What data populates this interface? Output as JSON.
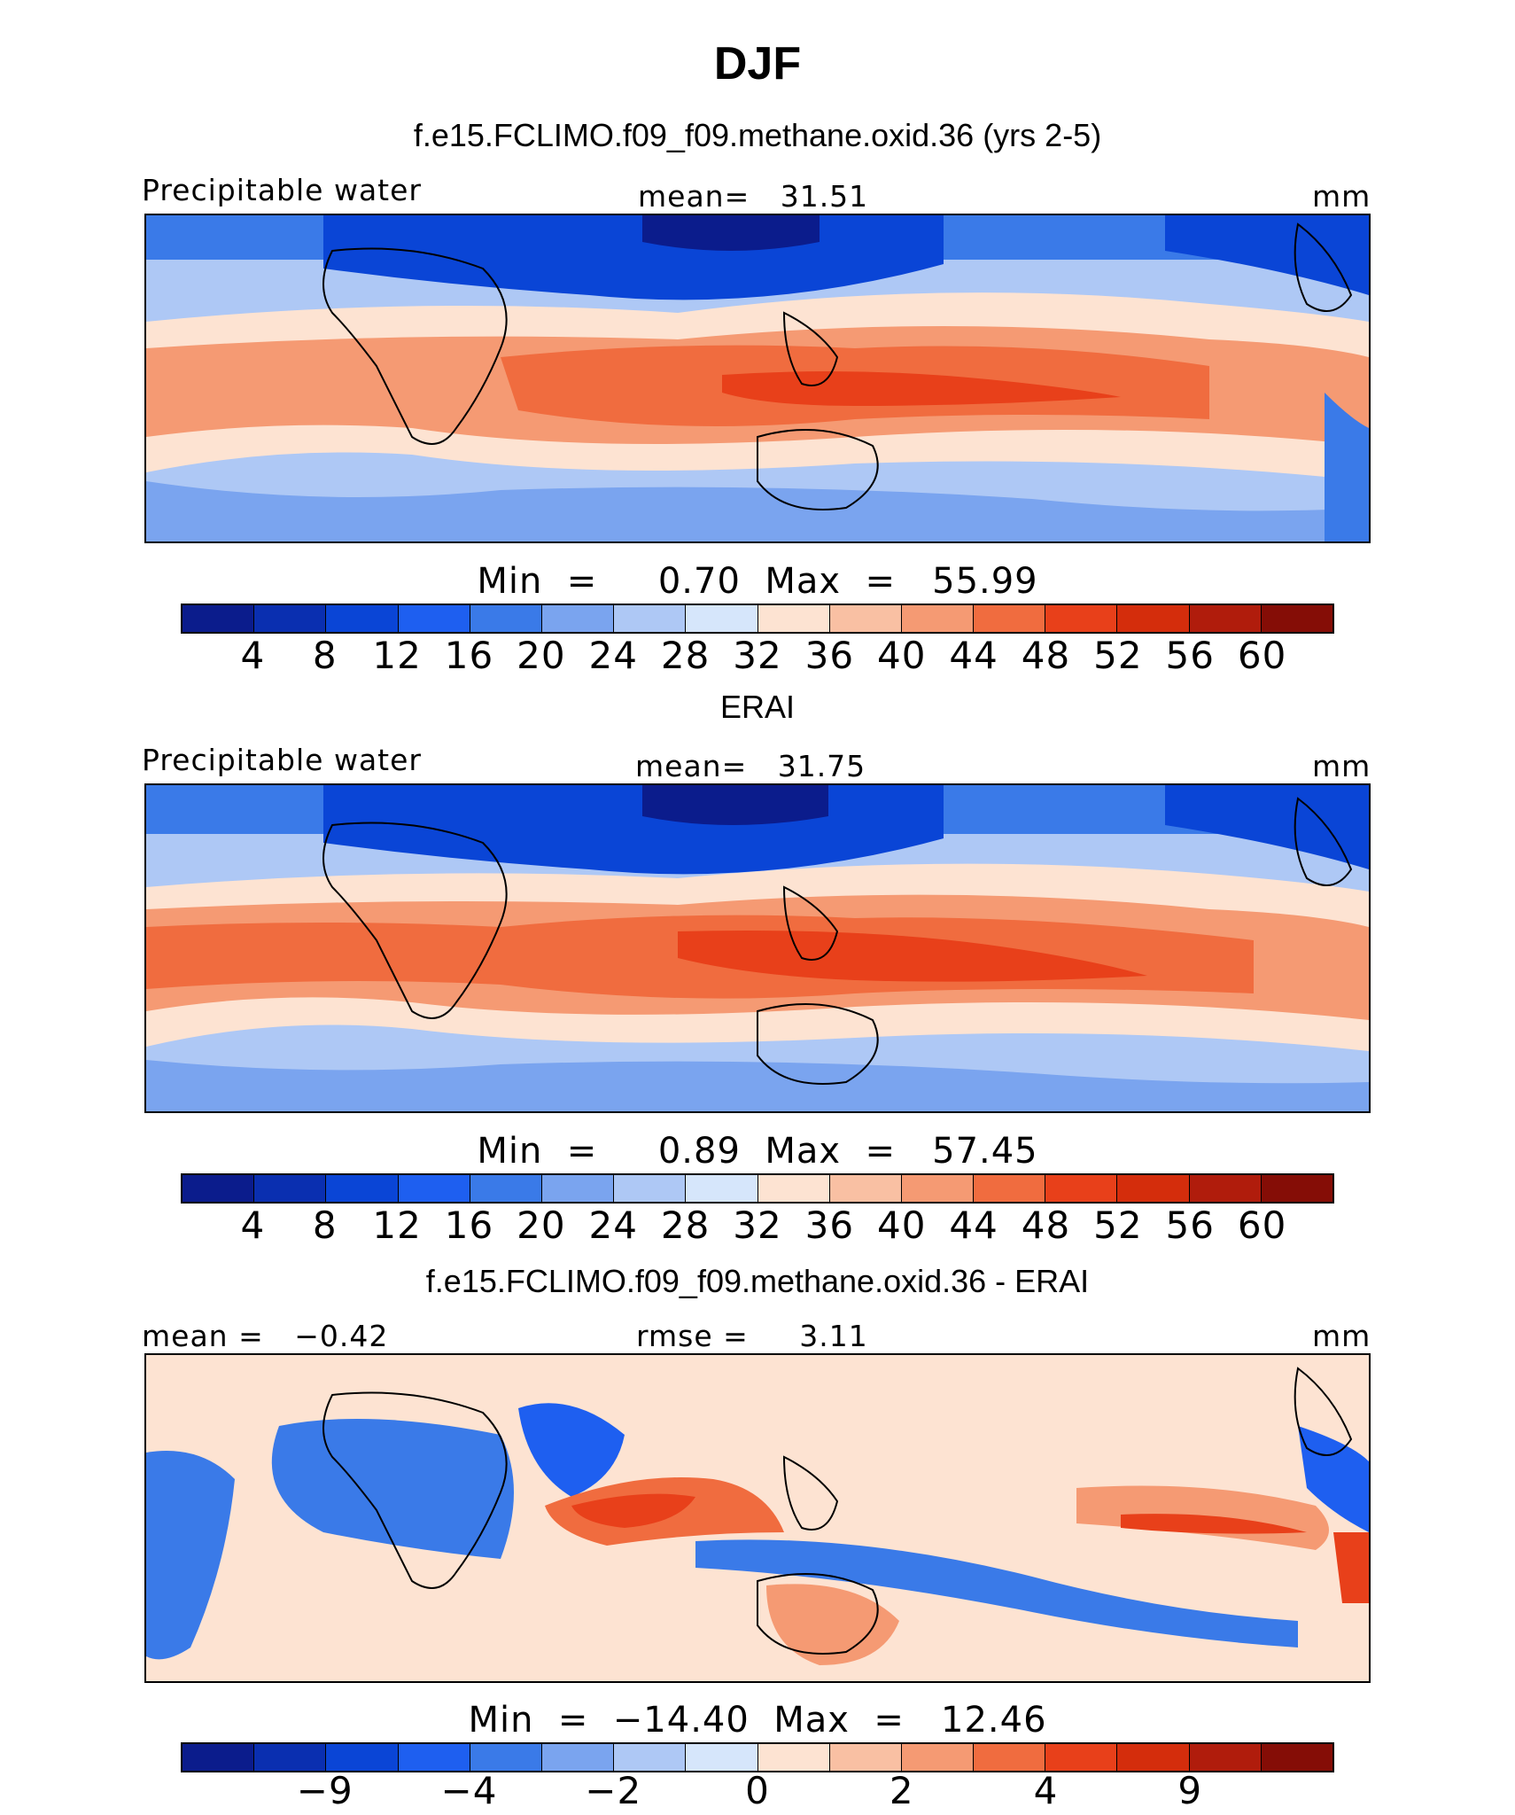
{
  "title": "DJF",
  "panels": [
    {
      "title": "f.e15.FCLIMO.f09_f09.methane.oxid.36 (yrs 2-5)",
      "left_label": "Precipitable water",
      "center_label": "mean=   31.51",
      "right_label": "mm",
      "minmax_label": "Min  =     0.70  Max  =   55.99",
      "colorbar_ticks": [
        "4",
        "8",
        "12",
        "16",
        "20",
        "24",
        "28",
        "32",
        "36",
        "40",
        "44",
        "48",
        "52",
        "56",
        "60"
      ],
      "colors": [
        "#0b1c8c",
        "#0a2fb0",
        "#0a45d6",
        "#1e5ff0",
        "#3a7ae8",
        "#7aa4ef",
        "#aec8f5",
        "#d6e6fb",
        "#fde3d2",
        "#f9c0a3",
        "#f59a73",
        "#f06c3f",
        "#e8401a",
        "#d42d0c",
        "#b01c0c",
        "#850d06"
      ]
    },
    {
      "title": "ERAI",
      "left_label": "Precipitable water",
      "center_label": "mean=   31.75",
      "right_label": "mm",
      "minmax_label": "Min  =     0.89  Max  =   57.45",
      "colorbar_ticks": [
        "4",
        "8",
        "12",
        "16",
        "20",
        "24",
        "28",
        "32",
        "36",
        "40",
        "44",
        "48",
        "52",
        "56",
        "60"
      ],
      "colors": [
        "#0b1c8c",
        "#0a2fb0",
        "#0a45d6",
        "#1e5ff0",
        "#3a7ae8",
        "#7aa4ef",
        "#aec8f5",
        "#d6e6fb",
        "#fde3d2",
        "#f9c0a3",
        "#f59a73",
        "#f06c3f",
        "#e8401a",
        "#d42d0c",
        "#b01c0c",
        "#850d06"
      ]
    },
    {
      "title": "f.e15.FCLIMO.f09_f09.methane.oxid.36 - ERAI",
      "left_label": "mean =   −0.42",
      "center_label": "rmse =     3.11",
      "right_label": "mm",
      "minmax_label": "Min  =  −14.40  Max  =   12.46",
      "colorbar_ticks": [
        "−9",
        "−4",
        "−2",
        "0",
        "2",
        "4",
        "9"
      ],
      "colors": [
        "#0b1c8c",
        "#0a2fb0",
        "#0a45d6",
        "#1e5ff0",
        "#3a7ae8",
        "#7aa4ef",
        "#aec8f5",
        "#d6e6fb",
        "#fde3d2",
        "#f9c0a3",
        "#f59a73",
        "#f06c3f",
        "#e8401a",
        "#d42d0c",
        "#b01c0c",
        "#850d06"
      ]
    }
  ]
}
